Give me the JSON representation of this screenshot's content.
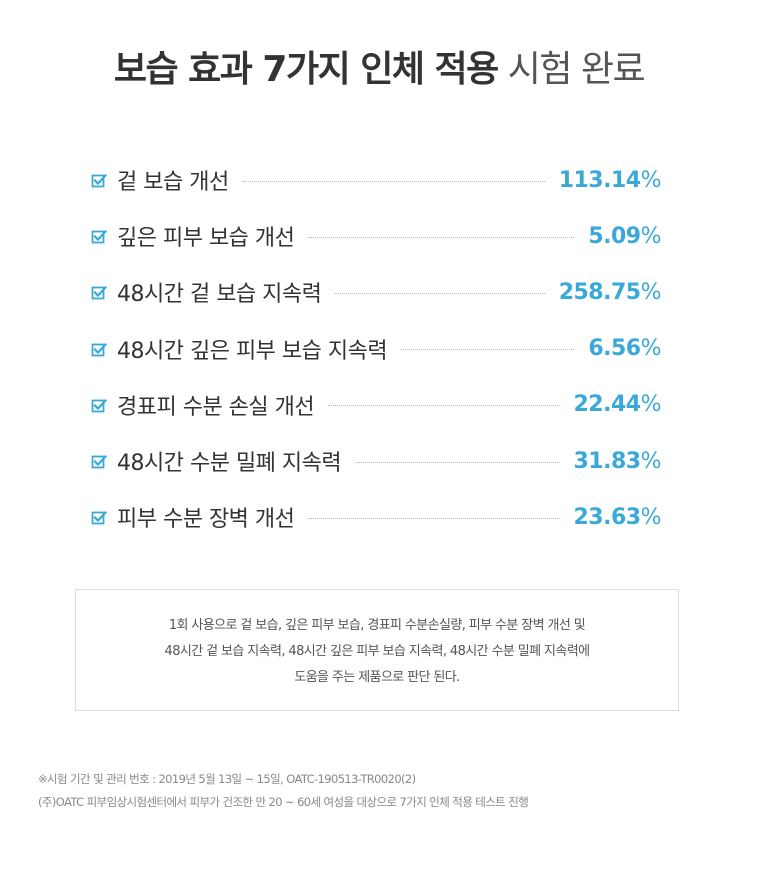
{
  "title": {
    "bold": "보습 효과 7가지 인체 적용",
    "light": "시험 완료"
  },
  "colors": {
    "accent": "#3aa9d9",
    "text": "#333333",
    "leader": "#b9b9b9"
  },
  "check_icon": "checkbox-checked-icon",
  "results": [
    {
      "label": "겉 보습 개선",
      "value": "113.14",
      "unit": "%"
    },
    {
      "label": "깊은 피부 보습 개선",
      "value": "5.09",
      "unit": "%"
    },
    {
      "label": "48시간 겉 보습 지속력",
      "value": "258.75",
      "unit": "%"
    },
    {
      "label": "48시간 깊은 피부 보습 지속력",
      "value": "6.56",
      "unit": "%"
    },
    {
      "label": "경표피 수분 손실 개선",
      "value": "22.44",
      "unit": "%"
    },
    {
      "label": "48시간 수분 밀폐 지속력",
      "value": "31.83",
      "unit": "%"
    },
    {
      "label": "피부 수분 장벽 개선",
      "value": "23.63",
      "unit": "%"
    }
  ],
  "summary": {
    "lines": [
      "1회 사용으로 겉 보습, 깊은 피부 보습, 경표피 수분손실량, 피부 수분 장벽 개선 및",
      "48시간 겉 보습 지속력, 48시간 깊은 피부 보습 지속력, 48시간 수분 밀폐 지속력에",
      "도움을 주는 제품으로 판단 된다."
    ]
  },
  "footnotes": [
    "※시험 기간 및 관리 번호 : 2019년 5월 13일 ~ 15일,  OATC-190513-TR0020(2)",
    "(주)OATC 피부임상시험센터에서 피부가 건조한 만 20 ~ 60세 여성을 대상으로 7가지 인체 적용 테스트 진행"
  ]
}
